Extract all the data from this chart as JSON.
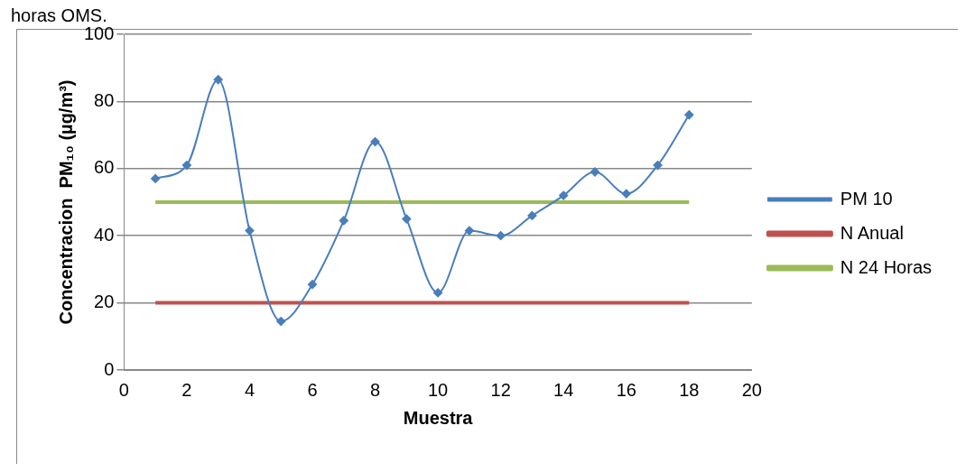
{
  "chart_data": {
    "type": "line",
    "xlabel": "Muestra",
    "ylabel": "Concentracion  PM₁₀ (µg/m³)",
    "annotations": [
      "horas OMS."
    ],
    "x": [
      1,
      2,
      3,
      4,
      5,
      6,
      7,
      8,
      9,
      10,
      11,
      12,
      13,
      14,
      15,
      16,
      17,
      18
    ],
    "series": [
      {
        "name": "PM 10",
        "color": "#4a7ebb",
        "marker": "diamond",
        "values": [
          57,
          61,
          86.5,
          41.5,
          14.5,
          25.5,
          44.5,
          68,
          45,
          23,
          41.5,
          40,
          46,
          52,
          59,
          52.5,
          61,
          76
        ]
      },
      {
        "name": "N Anual",
        "color": "#c0504d",
        "marker": "none",
        "values": [
          20,
          20,
          20,
          20,
          20,
          20,
          20,
          20,
          20,
          20,
          20,
          20,
          20,
          20,
          20,
          20,
          20,
          20
        ]
      },
      {
        "name": "N 24 Horas",
        "color": "#9bbb59",
        "marker": "none",
        "values": [
          50,
          50,
          50,
          50,
          50,
          50,
          50,
          50,
          50,
          50,
          50,
          50,
          50,
          50,
          50,
          50,
          50,
          50
        ]
      }
    ],
    "xlim": [
      0,
      20
    ],
    "xticks": [
      0,
      2,
      4,
      6,
      8,
      10,
      12,
      14,
      16,
      18,
      20
    ],
    "ylim": [
      0,
      100
    ],
    "yticks": [
      0,
      20,
      40,
      60,
      80,
      100
    ],
    "grid": "y",
    "legend": "right"
  }
}
